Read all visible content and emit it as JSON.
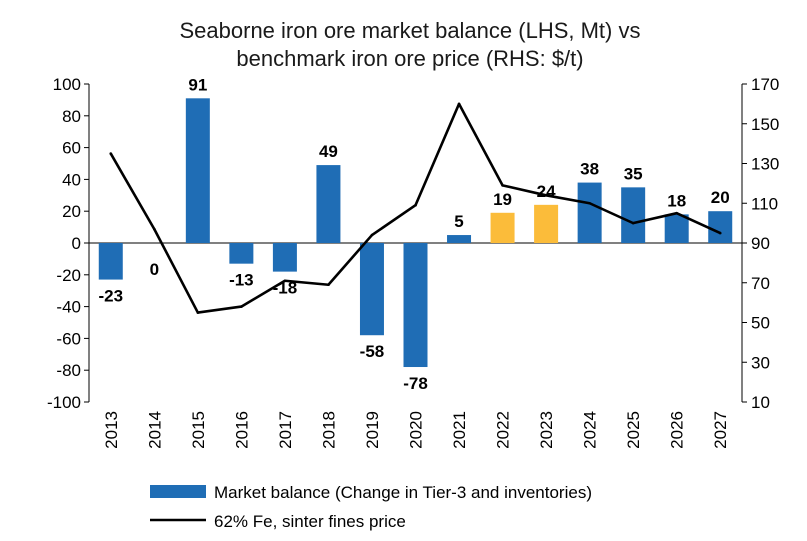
{
  "chart_data": {
    "type": "bar",
    "title_lines": [
      "Seaborne iron ore market balance (LHS, Mt) vs",
      "benchmark iron ore price (RHS: $/t)"
    ],
    "categories": [
      "2013",
      "2014",
      "2015",
      "2016",
      "2017",
      "2018",
      "2019",
      "2020",
      "2021",
      "2022",
      "2023",
      "2024",
      "2025",
      "2026",
      "2027"
    ],
    "series": [
      {
        "name": "Market balance (Change in Tier-3 and inventories)",
        "kind": "bar",
        "axis": "left",
        "values": [
          -23,
          0,
          91,
          -13,
          -18,
          49,
          -58,
          -78,
          5,
          19,
          24,
          38,
          35,
          18,
          20
        ],
        "labels": [
          "-23",
          "0",
          "91",
          "-13",
          "-18",
          "49",
          "-58",
          "-78",
          "5",
          "19",
          "24",
          "38",
          "35",
          "18",
          "20"
        ],
        "color": "#1f6db5",
        "highlight_color": "#fbbc3a",
        "highlight_categories": [
          "2022",
          "2023"
        ]
      },
      {
        "name": "62% Fe, sinter fines price",
        "kind": "line",
        "axis": "right",
        "values": [
          135,
          97,
          55,
          58,
          71,
          69,
          94,
          109,
          160,
          119,
          114,
          110,
          100,
          105,
          95
        ],
        "color": "#000000"
      }
    ],
    "ylim": [
      -100,
      100
    ],
    "yticks": [
      "100",
      "80",
      "60",
      "40",
      "20",
      "0",
      "-20",
      "-40",
      "-60",
      "-80",
      "-100"
    ],
    "y2lim": [
      10,
      170
    ],
    "y2ticks": [
      "170",
      "150",
      "130",
      "110",
      "90",
      "70",
      "50",
      "30",
      "10"
    ],
    "legend": "bottom"
  }
}
